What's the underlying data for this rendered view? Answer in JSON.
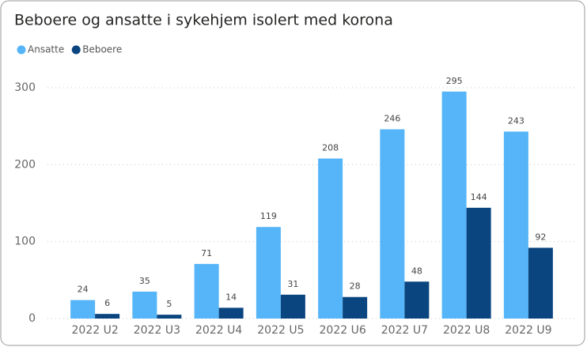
{
  "chart_data": {
    "type": "bar",
    "title": "Beboere og ansatte i sykehjem isolert med korona",
    "categories": [
      "2022 U2",
      "2022 U3",
      "2022 U4",
      "2022 U5",
      "2022 U6",
      "2022 U7",
      "2022 U8",
      "2022 U9"
    ],
    "series": [
      {
        "name": "Ansatte",
        "color": "#55b5f8",
        "values": [
          24,
          35,
          71,
          119,
          208,
          246,
          295,
          243
        ]
      },
      {
        "name": "Beboere",
        "color": "#0b4580",
        "values": [
          6,
          5,
          14,
          31,
          28,
          48,
          144,
          92
        ]
      }
    ],
    "ylim": [
      0,
      300
    ],
    "yticks": [
      0,
      100,
      200,
      300
    ],
    "grid": true,
    "legend": "top-left"
  }
}
